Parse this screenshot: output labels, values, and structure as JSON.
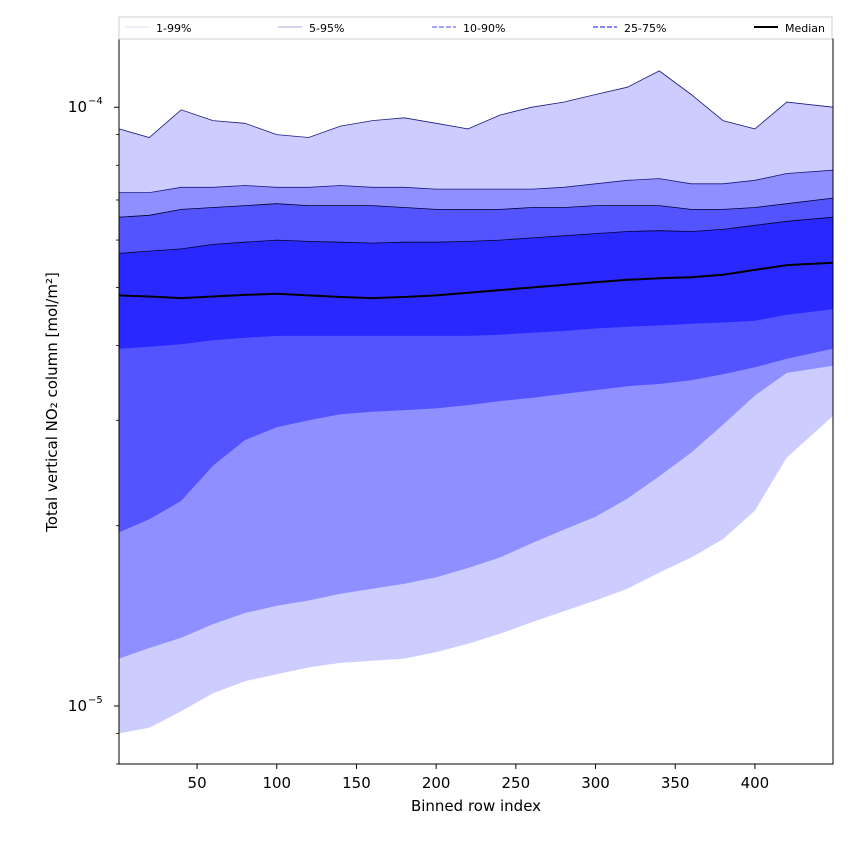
{
  "chart_data": {
    "type": "area",
    "xlabel": "Binned row index",
    "ylabel": "Total vertical NO₂ column [mol/m²]",
    "xlim": [
      1,
      449
    ],
    "ylim": [
      8e-06,
      0.00013
    ],
    "yscale": "log",
    "grid": false,
    "legend_position": "top",
    "x_ticks": [
      50,
      100,
      150,
      200,
      250,
      300,
      350,
      400
    ],
    "x_tick_labels": [
      "50",
      "100",
      "150",
      "200",
      "250",
      "300",
      "350",
      "400"
    ],
    "y_ticks": [
      1e-05,
      0.0001
    ],
    "y_tick_labels": [
      {
        "base": "10",
        "exp": "−5"
      },
      {
        "base": "10",
        "exp": "−4"
      }
    ],
    "legend": [
      {
        "label": "1-99%",
        "style": "thin"
      },
      {
        "label": "5-95%",
        "style": "thin"
      },
      {
        "label": "10-90%",
        "style": "dashed"
      },
      {
        "label": "25-75%",
        "style": "dashed"
      },
      {
        "label": "Median",
        "style": "solid"
      }
    ],
    "x": [
      1,
      20,
      40,
      60,
      80,
      100,
      120,
      140,
      160,
      180,
      200,
      220,
      240,
      260,
      280,
      300,
      320,
      340,
      360,
      380,
      400,
      420,
      449
    ],
    "bands": [
      {
        "name": "1-99%",
        "color": "#ccccff",
        "lower": [
          9e-06,
          9.2e-06,
          9.8e-06,
          1.05e-05,
          1.1e-05,
          1.13e-05,
          1.16e-05,
          1.18e-05,
          1.19e-05,
          1.2e-05,
          1.23e-05,
          1.27e-05,
          1.32e-05,
          1.38e-05,
          1.44e-05,
          1.5e-05,
          1.57e-05,
          1.67e-05,
          1.77e-05,
          1.9e-05,
          2.12e-05,
          2.6e-05,
          3.05e-05
        ],
        "upper": [
          9.2e-05,
          8.9e-05,
          9.9e-05,
          9.5e-05,
          9.4e-05,
          9e-05,
          8.9e-05,
          9.3e-05,
          9.5e-05,
          9.6e-05,
          9.4e-05,
          9.2e-05,
          9.7e-05,
          0.0001,
          0.000102,
          0.000105,
          0.000108,
          0.000115,
          0.000105,
          9.5e-05,
          9.2e-05,
          0.000102,
          0.0001
        ]
      },
      {
        "name": "5-95%",
        "color": "#8f8fff",
        "lower": [
          1.2e-05,
          1.25e-05,
          1.3e-05,
          1.37e-05,
          1.43e-05,
          1.47e-05,
          1.5e-05,
          1.54e-05,
          1.57e-05,
          1.6e-05,
          1.64e-05,
          1.7e-05,
          1.77e-05,
          1.87e-05,
          1.97e-05,
          2.07e-05,
          2.22e-05,
          2.42e-05,
          2.65e-05,
          2.95e-05,
          3.3e-05,
          3.6e-05,
          3.7e-05
        ],
        "upper": [
          7.2e-05,
          7.2e-05,
          7.35e-05,
          7.35e-05,
          7.4e-05,
          7.35e-05,
          7.35e-05,
          7.4e-05,
          7.35e-05,
          7.35e-05,
          7.3e-05,
          7.3e-05,
          7.3e-05,
          7.3e-05,
          7.35e-05,
          7.45e-05,
          7.55e-05,
          7.6e-05,
          7.45e-05,
          7.45e-05,
          7.55e-05,
          7.75e-05,
          7.85e-05
        ]
      },
      {
        "name": "10-90%",
        "color": "#5454ff",
        "lower": [
          1.95e-05,
          2.05e-05,
          2.2e-05,
          2.52e-05,
          2.78e-05,
          2.92e-05,
          3e-05,
          3.07e-05,
          3.1e-05,
          3.12e-05,
          3.14e-05,
          3.18e-05,
          3.23e-05,
          3.27e-05,
          3.32e-05,
          3.37e-05,
          3.42e-05,
          3.45e-05,
          3.5e-05,
          3.58e-05,
          3.68e-05,
          3.8e-05,
          3.95e-05
        ],
        "upper": [
          6.55e-05,
          6.6e-05,
          6.75e-05,
          6.8e-05,
          6.85e-05,
          6.9e-05,
          6.85e-05,
          6.85e-05,
          6.85e-05,
          6.8e-05,
          6.75e-05,
          6.75e-05,
          6.75e-05,
          6.8e-05,
          6.8e-05,
          6.85e-05,
          6.85e-05,
          6.85e-05,
          6.75e-05,
          6.75e-05,
          6.8e-05,
          6.9e-05,
          7.05e-05
        ]
      },
      {
        "name": "25-75%",
        "color": "#2929ff",
        "lower": [
          3.95e-05,
          3.98e-05,
          4.02e-05,
          4.08e-05,
          4.12e-05,
          4.15e-05,
          4.15e-05,
          4.15e-05,
          4.15e-05,
          4.15e-05,
          4.15e-05,
          4.15e-05,
          4.17e-05,
          4.2e-05,
          4.23e-05,
          4.27e-05,
          4.3e-05,
          4.32e-05,
          4.35e-05,
          4.37e-05,
          4.4e-05,
          4.5e-05,
          4.6e-05
        ],
        "upper": [
          5.7e-05,
          5.75e-05,
          5.8e-05,
          5.9e-05,
          5.95e-05,
          6e-05,
          5.97e-05,
          5.95e-05,
          5.93e-05,
          5.95e-05,
          5.95e-05,
          5.97e-05,
          6e-05,
          6.05e-05,
          6.1e-05,
          6.15e-05,
          6.2e-05,
          6.22e-05,
          6.2e-05,
          6.25e-05,
          6.35e-05,
          6.45e-05,
          6.55e-05
        ]
      }
    ],
    "series": [
      {
        "name": "Median",
        "color": "#000000",
        "values": [
          4.85e-05,
          4.83e-05,
          4.8e-05,
          4.83e-05,
          4.86e-05,
          4.88e-05,
          4.85e-05,
          4.82e-05,
          4.8e-05,
          4.82e-05,
          4.85e-05,
          4.9e-05,
          4.95e-05,
          5e-05,
          5.05e-05,
          5.1e-05,
          5.15e-05,
          5.18e-05,
          5.2e-05,
          5.25e-05,
          5.35e-05,
          5.45e-05,
          5.5e-05
        ]
      }
    ]
  }
}
